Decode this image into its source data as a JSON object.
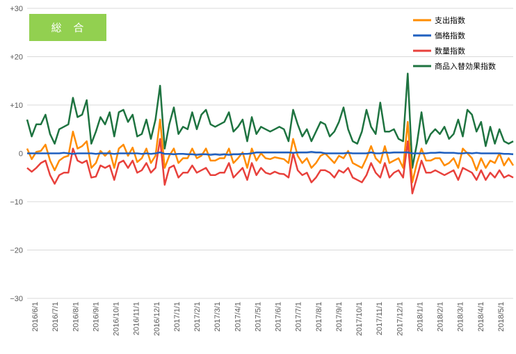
{
  "badge": {
    "label": "総 合",
    "color": "#92d050"
  },
  "chart_data": {
    "type": "line",
    "title": "総 合",
    "xlabel": "",
    "ylabel": "",
    "ylim": [
      -30,
      30
    ],
    "yticks": [
      30,
      20,
      10,
      0,
      -10,
      -20,
      -30
    ],
    "ytick_labels": [
      "+30",
      "+20",
      "+10",
      "0",
      "−10",
      "−20",
      "−30"
    ],
    "grid": "horizontal",
    "legend": "top-right",
    "x_tick_labels": [
      "2016/6/1",
      "2016/7/1",
      "2016/8/1",
      "2016/9/1",
      "2016/10/1",
      "2016/11/1",
      "2016/12/1",
      "2017/1/1",
      "2017/2/1",
      "2017/3/1",
      "2017/4/1",
      "2017/5/1",
      "2017/6/1",
      "2017/7/1",
      "2017/8/1",
      "2017/9/1",
      "2017/10/1",
      "2017/11/1",
      "2017/12/1",
      "2018/1/1",
      "2018/2/1",
      "2018/3/1",
      "2018/4/1",
      "2018/5/1"
    ],
    "x_points": 107,
    "series": [
      {
        "name": "支出指数",
        "color": "#ff8c00",
        "values": [
          1,
          -1.2,
          0.3,
          0.5,
          1.8,
          -1.5,
          -3.5,
          -1.5,
          -0.8,
          -0.5,
          4.5,
          1,
          1.5,
          2.5,
          -3,
          -2,
          0.5,
          -0.5,
          0.5,
          -3,
          1,
          1.8,
          -0.5,
          1.2,
          -1.8,
          -1,
          1,
          -2,
          -0.5,
          7,
          -3,
          -0.5,
          1,
          -2,
          -1,
          -1,
          1,
          -1,
          -0.5,
          1,
          -1.5,
          -1.5,
          -1,
          -1,
          1,
          -2,
          -1,
          0.2,
          -3,
          1,
          -1.5,
          0,
          -1,
          -1.2,
          -0.8,
          -1,
          -1.2,
          -2,
          3,
          -0.5,
          -2,
          -1,
          -3,
          -2,
          -0.5,
          0,
          -1,
          -2,
          -0.5,
          -1,
          0.5,
          -2,
          -2.5,
          -3,
          -1,
          1.5,
          -1,
          -2,
          1.5,
          -2,
          -1.5,
          -1,
          -3,
          6.5,
          -6,
          -2,
          1,
          -1.5,
          -1.5,
          -1,
          -1,
          -2.5,
          -2,
          -1,
          -3,
          1,
          0,
          -1,
          -3.5,
          -1,
          -3,
          -1.5,
          -2,
          0,
          -2.5,
          -1,
          -2.5
        ]
      },
      {
        "name": "価格指数",
        "color": "#1f5fbf",
        "values": [
          0,
          0,
          0,
          0,
          0,
          0,
          0,
          0,
          0.1,
          0,
          -0.1,
          0,
          0,
          0,
          0,
          -0.1,
          0,
          0,
          0,
          -0.1,
          0,
          0,
          0,
          0,
          0,
          -0.1,
          0,
          -0.1,
          0,
          0.2,
          -0.1,
          -0.1,
          -0.2,
          -0.1,
          -0.1,
          -0.2,
          -0.2,
          -0.3,
          -0.2,
          -0.2,
          -0.3,
          -0.2,
          -0.3,
          -0.2,
          -0.3,
          -0.2,
          -0.2,
          -0.1,
          -0.1,
          0,
          0.2,
          0.2,
          0.2,
          0.2,
          0.2,
          0.2,
          0.2,
          0.2,
          0.1,
          0.2,
          0.2,
          0.2,
          0.3,
          0.2,
          0.2,
          0,
          0,
          0,
          0,
          0,
          0.1,
          0,
          0,
          0,
          0,
          0.2,
          0,
          0,
          0.2,
          0.1,
          0.2,
          0.2,
          0.2,
          0.2,
          0,
          0,
          0,
          0,
          0.1,
          0.1,
          0.2,
          0.1,
          0.1,
          0.1,
          0,
          0,
          0.1,
          0,
          0.1,
          0,
          0,
          0,
          0,
          0,
          -0.1,
          -0.1,
          -0.2
        ]
      },
      {
        "name": "数量指数",
        "color": "#e8413c",
        "values": [
          -3,
          -3.8,
          -3,
          -2,
          -1.5,
          -4.5,
          -6.3,
          -4.5,
          -4,
          -4,
          1,
          -1.5,
          -2,
          -1.5,
          -5,
          -4.8,
          -2.5,
          -3,
          -2.5,
          -5.5,
          -2,
          -1.5,
          -3,
          -1.5,
          -4,
          -3.5,
          -2,
          -4,
          -3,
          3,
          -6.5,
          -3,
          -2.5,
          -5,
          -4,
          -4,
          -2.5,
          -4,
          -3.5,
          -3,
          -4.5,
          -4.5,
          -4,
          -4,
          -2,
          -5,
          -4,
          -3,
          -5.5,
          -2,
          -4.5,
          -3,
          -4,
          -4.3,
          -3.8,
          -4.2,
          -4.3,
          -5,
          0,
          -3.5,
          -4.5,
          -4,
          -6,
          -5,
          -3.5,
          -3.5,
          -4,
          -5,
          -3.5,
          -4,
          -3,
          -5,
          -5.5,
          -6,
          -4.5,
          -2,
          -4,
          -5,
          -2,
          -5,
          -4,
          -3.5,
          -5,
          2.5,
          -8.3,
          -5,
          -1.5,
          -4,
          -4,
          -3.5,
          -4,
          -4.5,
          -4,
          -3.5,
          -5.5,
          -3,
          -3.5,
          -4,
          -5.5,
          -3.5,
          -5.5,
          -4,
          -5,
          -3.5,
          -5,
          -4.5,
          -5
        ]
      },
      {
        "name": "商品入替効果指数",
        "color": "#1e7340",
        "values": [
          7,
          3.5,
          6,
          6,
          8,
          4,
          2,
          5,
          5.5,
          6,
          11.5,
          7.5,
          8,
          11,
          2,
          4.5,
          7.5,
          6,
          8.5,
          3.5,
          8.5,
          9,
          6.5,
          8,
          3.5,
          4,
          7,
          3,
          7,
          14,
          1,
          6,
          9.5,
          4,
          5.5,
          5,
          8.5,
          5,
          8,
          9,
          6,
          5.5,
          6,
          6.5,
          8.5,
          4.5,
          5.5,
          7,
          2.5,
          7.5,
          4,
          5.5,
          5,
          4.5,
          5,
          5.5,
          5,
          2.5,
          9,
          6,
          3.5,
          5,
          2.5,
          4.5,
          6.5,
          6,
          3.5,
          4.5,
          6.5,
          9.5,
          5,
          2.5,
          2,
          4.5,
          9,
          5.5,
          4,
          10.5,
          4.5,
          4.5,
          5,
          3,
          2.5,
          16.5,
          -3,
          2,
          8.5,
          2,
          4,
          5,
          4,
          5.5,
          3,
          4,
          7,
          3.5,
          9,
          8,
          4.5,
          6.5,
          1.5,
          5.5,
          2,
          5,
          2.5,
          2,
          2.5
        ]
      }
    ]
  }
}
